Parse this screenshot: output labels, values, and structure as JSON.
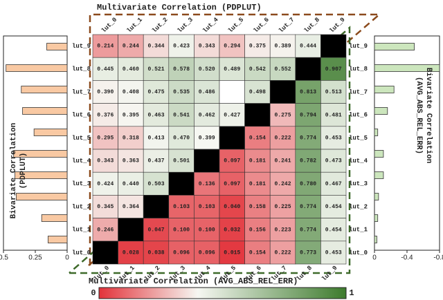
{
  "chart_data": [
    {
      "type": "heatmap",
      "title": "Multivariate Correlation (PDPLUT)",
      "xlabel": "Multivariate Correlation (AVG_ABS_REL_ERR)",
      "categories": [
        "lut_0",
        "lut_1",
        "lut_2",
        "lut_3",
        "lut_4",
        "lut_5",
        "lut_6",
        "lut_7",
        "lut_8",
        "lut_9"
      ],
      "rows": [
        "lut_9",
        "lut_8",
        "lut_7",
        "lut_6",
        "lut_5",
        "lut_4",
        "lut_3",
        "lut_2",
        "lut_1",
        "lut_0"
      ],
      "values": [
        [
          0.214,
          0.244,
          0.344,
          0.423,
          0.343,
          0.294,
          0.375,
          0.389,
          0.444,
          null
        ],
        [
          0.445,
          0.46,
          0.521,
          0.578,
          0.52,
          0.489,
          0.542,
          0.552,
          null,
          0.907
        ],
        [
          0.39,
          0.408,
          0.475,
          0.535,
          0.486,
          null,
          0.498,
          null,
          0.813,
          0.513
        ],
        [
          0.376,
          0.395,
          0.463,
          0.541,
          0.462,
          0.427,
          null,
          0.275,
          0.794,
          0.481
        ],
        [
          0.295,
          0.318,
          0.413,
          0.47,
          0.399,
          null,
          0.154,
          0.222,
          0.774,
          0.453
        ],
        [
          0.343,
          0.363,
          0.437,
          0.501,
          null,
          0.097,
          0.181,
          0.241,
          0.782,
          0.473
        ],
        [
          0.424,
          0.44,
          0.503,
          null,
          0.136,
          0.097,
          0.181,
          0.242,
          0.78,
          0.467
        ],
        [
          0.345,
          0.364,
          null,
          0.103,
          0.103,
          0.04,
          0.158,
          0.225,
          0.774,
          0.454
        ],
        [
          0.246,
          null,
          0.047,
          0.1,
          0.1,
          0.032,
          0.156,
          0.223,
          0.774,
          0.454
        ],
        [
          null,
          0.028,
          0.038,
          0.096,
          0.096,
          0.015,
          0.154,
          0.222,
          0.773,
          0.453
        ]
      ],
      "value_labels": [
        [
          "0.214",
          "0.244",
          "0.344",
          "0.423",
          "0.343",
          "0.294",
          "0.375",
          "0.389",
          "0.444",
          null
        ],
        [
          "0.445",
          "0.460",
          "0.521",
          "0.578",
          "0.520",
          "0.489",
          "0.542",
          "0.552",
          null,
          "0.907"
        ],
        [
          "0.390",
          "0.408",
          "0.475",
          "0.535",
          "0.486",
          null,
          "0.498",
          null,
          "0.813",
          "0.513"
        ],
        [
          "0.376",
          "0.395",
          "0.463",
          "0.541",
          "0.462",
          "0.427",
          null,
          "0.275",
          "0.794",
          "0.481"
        ],
        [
          "0.295",
          "0.318",
          "0.413",
          "0.470",
          "0.399",
          null,
          "0.154",
          "0.222",
          "0.774",
          "0.453"
        ],
        [
          "0.343",
          "0.363",
          "0.437",
          "0.501",
          null,
          "0.097",
          "0.181",
          "0.241",
          "0.782",
          "0.473"
        ],
        [
          "0.424",
          "0.440",
          "0.503",
          null,
          "0.136",
          "0.097",
          "0.181",
          "0.242",
          "0.780",
          "0.467"
        ],
        [
          "0.345",
          "0.364",
          null,
          "0.103",
          "0.103",
          "0.040",
          "0.158",
          "0.225",
          "0.774",
          "0.454"
        ],
        [
          "0.246",
          null,
          "0.047",
          "0.100",
          "0.100",
          "0.032",
          "0.156",
          "0.223",
          "0.774",
          "0.454"
        ],
        [
          null,
          "0.028",
          "0.038",
          "0.096",
          "0.096",
          "0.015",
          "0.154",
          "0.222",
          "0.773",
          "0.453"
        ]
      ],
      "colormap": {
        "stops": [
          0,
          0.4,
          1
        ],
        "colors": [
          "#e2323a",
          "#f6f7f2",
          "#3d7b2d"
        ]
      },
      "colorbar_ticks": [
        0,
        1
      ]
    },
    {
      "type": "barh",
      "ylabel": [
        "Bivariate Correlation",
        "(PDPLUT)"
      ],
      "values": [
        0.16,
        0.48,
        0.36,
        0.35,
        0.26,
        0.42,
        0.41,
        0.4,
        0.2,
        0.15
      ],
      "color": "#f9c9a3",
      "xlim": [
        0.5,
        0
      ],
      "xticks": [
        0.5,
        0.25,
        0
      ]
    },
    {
      "type": "barh",
      "ylabel": [
        "Bivariate Correlation",
        "(AVG_ABS_REL_ERR)"
      ],
      "values": [
        -0.49,
        -0.8,
        -0.24,
        -0.16,
        -0.04,
        -0.11,
        -0.11,
        -0.05,
        -0.04,
        -0.03
      ],
      "color": "#cce6bd",
      "xlim": [
        0,
        -0.8
      ],
      "xticks": [
        0,
        -0.4,
        -0.8
      ]
    }
  ]
}
